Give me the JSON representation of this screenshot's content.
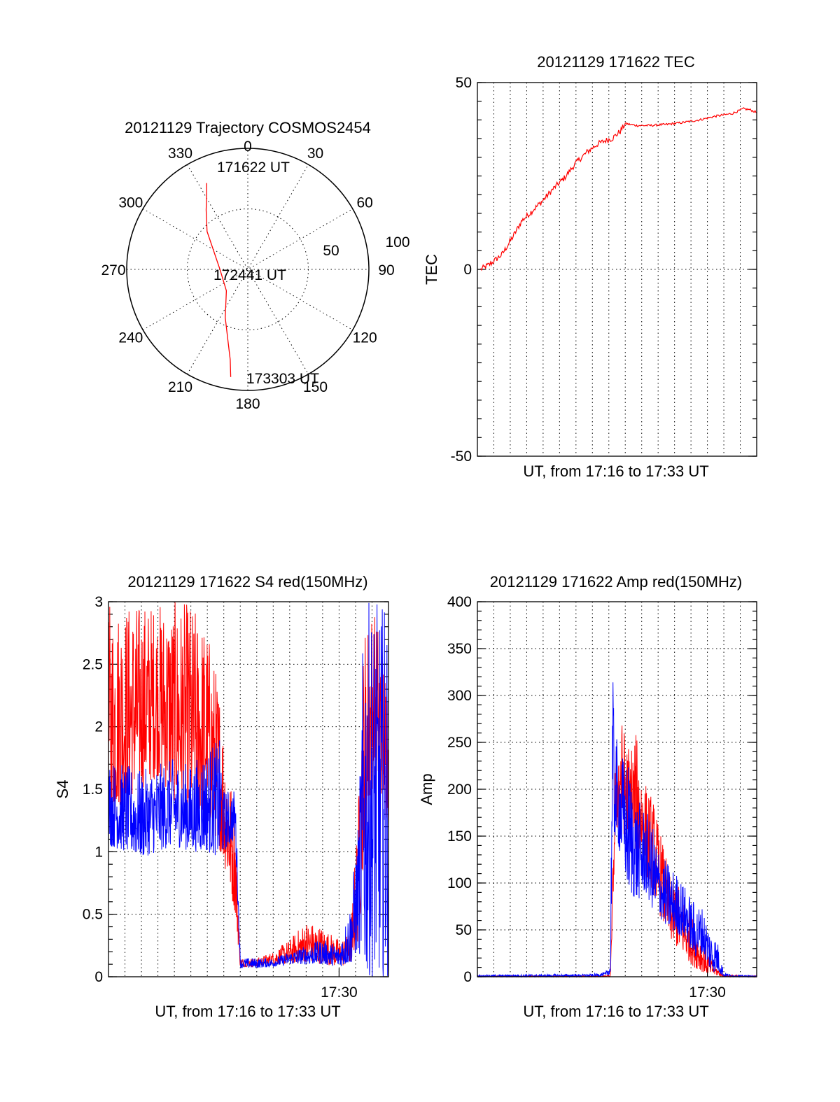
{
  "colors": {
    "red": "#ff0000",
    "blue": "#0000ff",
    "axis": "#000000"
  },
  "chart_data": [
    {
      "id": "trajectory",
      "type": "scatter",
      "subtype": "polar",
      "title": "20121129 Trajectory COSMOS2454",
      "azimuth_labels": [
        "0",
        "30",
        "60",
        "90",
        "120",
        "150",
        "180",
        "210",
        "240",
        "270",
        "300",
        "330"
      ],
      "radial_labels": [
        "50",
        "100"
      ],
      "radial_range": [
        0,
        100
      ],
      "point_labels": {
        "start": "171622 UT",
        "middle": "172441 UT",
        "end": "173303 UT"
      },
      "series": [
        {
          "color": "#ff0000",
          "points_az_r": [
            [
              -25.5,
              79
            ],
            [
              -29,
              70
            ],
            [
              -35,
              60
            ],
            [
              -47,
              46
            ],
            [
              -90,
              23
            ],
            [
              -135,
              25
            ],
            [
              -155,
              44
            ],
            [
              -164,
              60
            ],
            [
              -169,
              76
            ],
            [
              -171,
              90
            ]
          ]
        }
      ]
    },
    {
      "id": "tec",
      "type": "line",
      "title": "20121129 171622 TEC",
      "ylabel": "TEC",
      "xlabel": "UT, from 17:16 to 17:33 UT",
      "ylim": [
        -50,
        50
      ],
      "yticks": [
        "50",
        "0",
        "-50"
      ],
      "xlim": [
        0,
        17
      ],
      "grid": true,
      "series": [
        {
          "color": "#ff0000",
          "x": [
            0.2,
            0.8,
            1.5,
            2.2,
            2.7,
            3.3,
            4.0,
            4.6,
            5.3,
            6.0,
            6.7,
            7.3,
            7.8,
            8.2,
            8.7,
            9.0,
            9.7,
            10.5,
            11.5,
            12.5,
            13.5,
            14.5,
            15.5,
            16.2,
            16.6,
            17.0
          ],
          "y": [
            0,
            1.5,
            4.0,
            9.0,
            13.0,
            15.5,
            18.5,
            21.5,
            24.5,
            28.5,
            31.5,
            33.5,
            34.5,
            35.0,
            37.0,
            39.0,
            38.5,
            38.5,
            38.8,
            39.3,
            40.0,
            41.0,
            41.7,
            43.0,
            42.7,
            42.0
          ]
        }
      ]
    },
    {
      "id": "s4",
      "type": "line",
      "title": "20121129 171622 S4 red(150MHz)",
      "ylabel": "S4",
      "xlabel": "UT, from 17:16 to 17:33 UT",
      "ylim": [
        0,
        3
      ],
      "yticks": [
        "0",
        "0.5",
        "1",
        "1.5",
        "2",
        "2.5",
        "3"
      ],
      "xtick_label": "17:30",
      "xtick_value": 14,
      "xlim": [
        0,
        17
      ],
      "grid": true,
      "series": [
        {
          "color": "#ff0000",
          "envelope_x": [
            0.0,
            1.0,
            2.0,
            3.0,
            4.0,
            5.0,
            6.0,
            6.8,
            7.0,
            7.7,
            8.0,
            9.0,
            10.0,
            11.0,
            12.0,
            13.0,
            14.0,
            14.7,
            15.2,
            15.5,
            16.0,
            16.5,
            17.0
          ],
          "envelope_high": [
            3.0,
            3.0,
            3.0,
            3.0,
            3.0,
            3.0,
            2.8,
            2.3,
            2.0,
            1.3,
            0.15,
            0.15,
            0.2,
            0.3,
            0.45,
            0.4,
            0.3,
            0.35,
            1.5,
            2.8,
            3.0,
            2.8,
            2.5
          ],
          "envelope_low": [
            1.3,
            1.4,
            1.5,
            1.6,
            1.4,
            1.3,
            1.3,
            1.0,
            0.9,
            0.5,
            0.08,
            0.08,
            0.1,
            0.1,
            0.12,
            0.1,
            0.08,
            0.1,
            0.3,
            1.0,
            1.5,
            1.5,
            1.2
          ]
        },
        {
          "color": "#0000ff",
          "envelope_x": [
            0.0,
            1.0,
            2.0,
            3.0,
            4.0,
            5.0,
            6.0,
            6.8,
            7.0,
            7.7,
            8.0,
            9.0,
            10.0,
            11.0,
            12.0,
            13.0,
            14.0,
            14.7,
            15.2,
            15.5,
            16.0,
            16.5,
            17.0
          ],
          "envelope_high": [
            1.75,
            1.7,
            1.65,
            1.7,
            1.75,
            1.7,
            1.85,
            1.9,
            1.5,
            1.5,
            0.15,
            0.15,
            0.15,
            0.2,
            0.25,
            0.3,
            0.25,
            0.6,
            1.3,
            3.0,
            3.0,
            3.0,
            3.0
          ],
          "envelope_low": [
            1.05,
            1.0,
            0.95,
            1.0,
            1.05,
            1.0,
            1.0,
            0.95,
            1.0,
            1.1,
            0.07,
            0.07,
            0.08,
            0.1,
            0.1,
            0.1,
            0.08,
            0.1,
            0.2,
            0.0,
            0.0,
            0.0,
            0.0
          ]
        }
      ]
    },
    {
      "id": "amp",
      "type": "line",
      "title": "20121129 171622 Amp red(150MHz)",
      "ylabel": "Amp",
      "xlabel": "UT, from 17:16 to 17:33 UT",
      "ylim": [
        0,
        400
      ],
      "yticks": [
        "0",
        "50",
        "100",
        "150",
        "200",
        "250",
        "300",
        "350",
        "400"
      ],
      "xtick_label": "17:30",
      "xtick_value": 14,
      "xlim": [
        0,
        17
      ],
      "grid": true,
      "series": [
        {
          "color": "#ff0000",
          "envelope_x": [
            0.0,
            7.5,
            8.1,
            8.4,
            8.7,
            9.2,
            9.7,
            10.2,
            10.7,
            11.2,
            11.7,
            12.2,
            12.7,
            13.2,
            13.7,
            14.2,
            14.6,
            15.0,
            17.0
          ],
          "envelope_high": [
            1,
            1,
            2,
            240,
            280,
            250,
            260,
            210,
            190,
            150,
            110,
            100,
            80,
            60,
            40,
            20,
            10,
            2,
            1
          ],
          "envelope_low": [
            0,
            0,
            0,
            150,
            160,
            140,
            130,
            110,
            90,
            60,
            40,
            30,
            20,
            10,
            5,
            2,
            1,
            0,
            0
          ]
        },
        {
          "color": "#0000ff",
          "envelope_x": [
            0.0,
            7.0,
            7.8,
            8.1,
            8.2,
            8.4,
            8.7,
            9.2,
            9.7,
            10.2,
            10.7,
            11.2,
            11.7,
            12.2,
            12.7,
            13.2,
            13.7,
            14.2,
            14.6,
            15.0,
            15.5,
            17.0
          ],
          "envelope_high": [
            2,
            3,
            5,
            15,
            335,
            260,
            240,
            230,
            190,
            180,
            160,
            130,
            120,
            110,
            95,
            80,
            75,
            50,
            40,
            5,
            2,
            1
          ],
          "envelope_low": [
            0,
            0,
            1,
            2,
            120,
            150,
            130,
            90,
            80,
            90,
            70,
            60,
            50,
            45,
            40,
            20,
            25,
            5,
            5,
            0,
            0,
            0
          ]
        }
      ]
    }
  ]
}
